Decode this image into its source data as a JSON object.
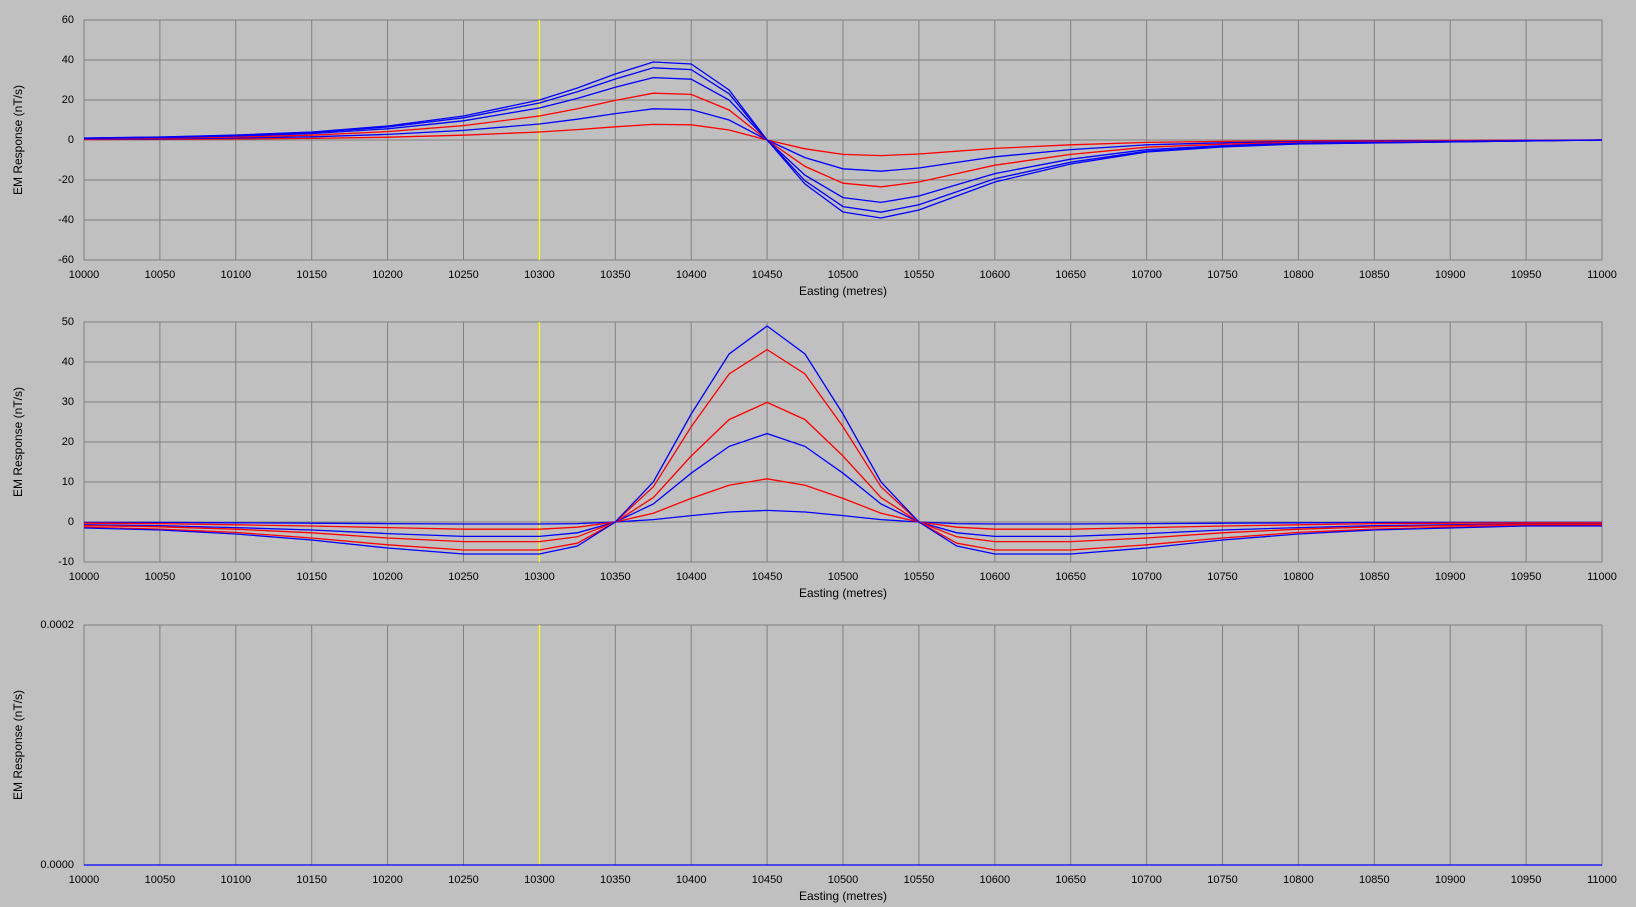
{
  "chart_data": [
    {
      "type": "line",
      "x_label": "Easting (metres)",
      "y_label": "EM Response (nT/s)",
      "grid": true,
      "marker_x": 10300,
      "marker_color": "#ffff00",
      "xlim": [
        10000,
        11000
      ],
      "ylim": [
        -60,
        60
      ],
      "xticks": [
        10000,
        10050,
        10100,
        10150,
        10200,
        10250,
        10300,
        10350,
        10400,
        10450,
        10500,
        10550,
        10600,
        10650,
        10700,
        10750,
        10800,
        10850,
        10900,
        10950,
        11000
      ],
      "yticks": [
        -60,
        -40,
        -20,
        0,
        20,
        40,
        60
      ],
      "x": [
        10000,
        10050,
        10100,
        10150,
        10200,
        10250,
        10300,
        10325,
        10350,
        10375,
        10400,
        10425,
        10450,
        10475,
        10500,
        10525,
        10550,
        10575,
        10600,
        10650,
        10700,
        10750,
        10800,
        10850,
        10900,
        10950,
        11000
      ],
      "series": [
        {
          "color": "#ff0000",
          "values": [
            0.2,
            0.3,
            0.5,
            0.8,
            1.4,
            2.4,
            4,
            5.2,
            6.6,
            7.8,
            7.6,
            5,
            0,
            -4.4,
            -7.2,
            -7.8,
            -7,
            -5.6,
            -4.2,
            -2.4,
            -1.2,
            -0.7,
            -0.4,
            -0.3,
            -0.2,
            -0.1,
            0
          ]
        },
        {
          "color": "#0000ff",
          "values": [
            0.4,
            0.6,
            1,
            1.6,
            2.8,
            4.8,
            8,
            10.4,
            13.2,
            15.6,
            15.2,
            10,
            0,
            -8.8,
            -14.4,
            -15.6,
            -14,
            -11.2,
            -8.4,
            -4.8,
            -2.4,
            -1.4,
            -0.8,
            -0.6,
            -0.4,
            -0.2,
            0
          ]
        },
        {
          "color": "#ff0000",
          "values": [
            0.6,
            0.9,
            1.5,
            2.4,
            4.2,
            7.2,
            12,
            15.6,
            19.8,
            23.4,
            22.8,
            15,
            0,
            -13.2,
            -21.6,
            -23.4,
            -21,
            -16.8,
            -12.6,
            -7.2,
            -3.6,
            -2.1,
            -1.2,
            -0.9,
            -0.6,
            -0.3,
            0
          ]
        },
        {
          "color": "#0000ff",
          "values": [
            0.8,
            1.2,
            2,
            3.2,
            5.6,
            9.6,
            16,
            20.8,
            26.4,
            31.2,
            30.4,
            20,
            0,
            -17.6,
            -28.8,
            -31.2,
            -28,
            -22.4,
            -16.8,
            -9.6,
            -4.8,
            -2.8,
            -1.6,
            -1.2,
            -0.8,
            -0.4,
            0
          ]
        },
        {
          "color": "#0000ff",
          "values": [
            0.9,
            1.4,
            2.3,
            3.7,
            6.5,
            11.1,
            18.5,
            24.1,
            30.5,
            36.1,
            35.2,
            23.1,
            0,
            -20.4,
            -33.3,
            -36.1,
            -32.4,
            -25.9,
            -19.4,
            -11.1,
            -5.6,
            -3.2,
            -1.9,
            -1.4,
            -0.9,
            -0.5,
            0
          ]
        },
        {
          "color": "#0000ff",
          "values": [
            1,
            1.5,
            2.5,
            4,
            7,
            12,
            20,
            26,
            33,
            39,
            38,
            25,
            0,
            -22,
            -36,
            -39,
            -35,
            -28,
            -21,
            -12,
            -6,
            -3.5,
            -2,
            -1.5,
            -1,
            -0.5,
            0
          ]
        }
      ]
    },
    {
      "type": "line",
      "x_label": "Easting (metres)",
      "y_label": "EM Response (nT/s)",
      "grid": true,
      "marker_x": 10300,
      "marker_color": "#ffff00",
      "xlim": [
        10000,
        11000
      ],
      "ylim": [
        -10,
        50
      ],
      "xticks": [
        10000,
        10050,
        10100,
        10150,
        10200,
        10250,
        10300,
        10350,
        10400,
        10450,
        10500,
        10550,
        10600,
        10650,
        10700,
        10750,
        10800,
        10850,
        10900,
        10950,
        11000
      ],
      "yticks": [
        -10,
        0,
        10,
        20,
        30,
        40,
        50
      ],
      "x": [
        10000,
        10050,
        10100,
        10150,
        10200,
        10250,
        10300,
        10325,
        10350,
        10375,
        10400,
        10425,
        10450,
        10475,
        10500,
        10525,
        10550,
        10575,
        10600,
        10650,
        10700,
        10750,
        10800,
        10850,
        10900,
        10950,
        11000
      ],
      "series": [
        {
          "color": "#0000ff",
          "values": [
            -0.1,
            -0.1,
            -0.2,
            -0.3,
            -0.4,
            -0.5,
            -0.5,
            -0.4,
            0,
            0.6,
            1.6,
            2.5,
            2.9,
            2.5,
            1.6,
            0.6,
            0,
            -0.4,
            -0.5,
            -0.5,
            -0.4,
            -0.3,
            -0.2,
            -0.1,
            -0.1,
            -0.1,
            -0.1
          ]
        },
        {
          "color": "#ff0000",
          "values": [
            -0.3,
            -0.4,
            -0.7,
            -1,
            -1.4,
            -1.8,
            -1.8,
            -1.3,
            0,
            2.2,
            5.9,
            9.2,
            10.8,
            9.2,
            5.9,
            2.2,
            0,
            -1.3,
            -1.8,
            -1.8,
            -1.4,
            -1,
            -0.7,
            -0.4,
            -0.3,
            -0.2,
            -0.2
          ]
        },
        {
          "color": "#0000ff",
          "values": [
            -0.7,
            -0.9,
            -1.4,
            -2,
            -2.9,
            -3.6,
            -3.6,
            -2.7,
            0,
            4.5,
            12.2,
            18.9,
            22.1,
            18.9,
            12.2,
            4.5,
            0,
            -2.7,
            -3.6,
            -3.6,
            -2.9,
            -2,
            -1.4,
            -0.9,
            -0.7,
            -0.5,
            -0.5
          ]
        },
        {
          "color": "#ff0000",
          "values": [
            -0.9,
            -1.2,
            -1.8,
            -2.7,
            -4,
            -4.9,
            -4.9,
            -3.7,
            0,
            6.1,
            16.5,
            25.6,
            29.9,
            25.6,
            16.5,
            6.1,
            0,
            -3.7,
            -4.9,
            -4.9,
            -4,
            -2.7,
            -1.8,
            -1.2,
            -0.9,
            -0.6,
            -0.6
          ]
        },
        {
          "color": "#ff0000",
          "values": [
            -1.3,
            -1.8,
            -2.6,
            -4,
            -5.7,
            -7,
            -7,
            -5.3,
            0,
            8.8,
            23.8,
            37,
            43.1,
            37,
            23.8,
            8.8,
            0,
            -5.3,
            -7,
            -7,
            -5.7,
            -4,
            -2.6,
            -1.8,
            -1.3,
            -0.9,
            -0.9
          ]
        },
        {
          "color": "#0000ff",
          "values": [
            -1.5,
            -2,
            -3,
            -4.5,
            -6.5,
            -8,
            -8,
            -6,
            0,
            10,
            27,
            42,
            49,
            42,
            27,
            10,
            0,
            -6,
            -8,
            -8,
            -6.5,
            -4.5,
            -3,
            -2,
            -1.5,
            -1,
            -1
          ]
        }
      ]
    },
    {
      "type": "line",
      "x_label": "Easting (metres)",
      "y_label": "EM Response (nT/s)",
      "grid": true,
      "marker_x": 10300,
      "marker_color": "#ffff00",
      "xlim": [
        10000,
        11000
      ],
      "ylim": [
        0,
        0.0002
      ],
      "xticks": [
        10000,
        10050,
        10100,
        10150,
        10200,
        10250,
        10300,
        10350,
        10400,
        10450,
        10500,
        10550,
        10600,
        10650,
        10700,
        10750,
        10800,
        10850,
        10900,
        10950,
        11000
      ],
      "yticks": [
        {
          "value": 0,
          "label": "0.0000"
        },
        {
          "value": 0.0002,
          "label": "0.0002"
        }
      ],
      "x": [
        10000,
        10050,
        10100,
        10150,
        10200,
        10250,
        10300,
        10350,
        10400,
        10450,
        10500,
        10550,
        10600,
        10650,
        10700,
        10750,
        10800,
        10850,
        10900,
        10950,
        11000
      ],
      "series": [
        {
          "color": "#0000ff",
          "values": [
            0,
            0,
            0,
            0,
            0,
            0,
            0,
            0,
            0,
            0,
            0,
            0,
            0,
            0,
            0,
            0,
            0,
            0,
            0,
            0,
            0
          ]
        }
      ]
    }
  ]
}
